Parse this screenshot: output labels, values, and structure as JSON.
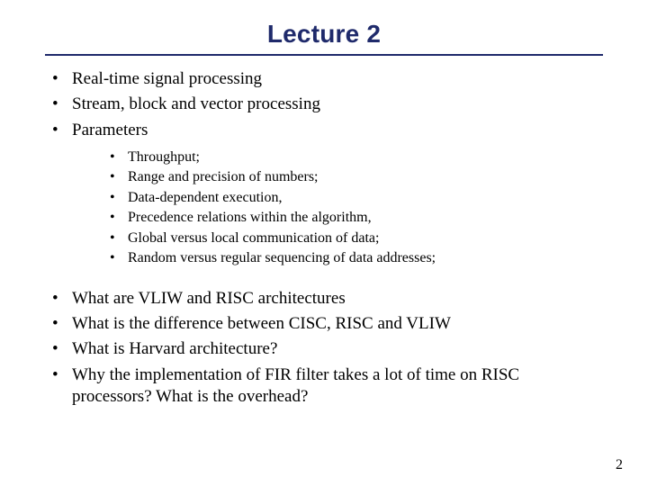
{
  "title": {
    "text": "Lecture 2",
    "color": "#1f2a6b",
    "fontsize": 28
  },
  "rule_color": "#1f2a6b",
  "body": {
    "color": "#000000",
    "l1_fontsize": 19,
    "l2_fontsize": 16,
    "block1": [
      "Real-time signal processing",
      "Stream, block and vector processing",
      "Parameters"
    ],
    "block1_sub": [
      "Throughput;",
      "Range and precision of numbers;",
      "Data-dependent execution,",
      "Precedence relations within the algorithm,",
      "Global versus local communication of data;",
      "Random versus regular sequencing of data addresses;"
    ],
    "block2": [
      "What are VLIW and RISC architectures",
      "What is the difference between CISC, RISC and VLIW",
      "What is Harvard architecture?",
      "Why the implementation of FIR filter takes a lot of time on RISC processors? What is the overhead?"
    ]
  },
  "page_number": "2",
  "page_number_fontsize": 16
}
